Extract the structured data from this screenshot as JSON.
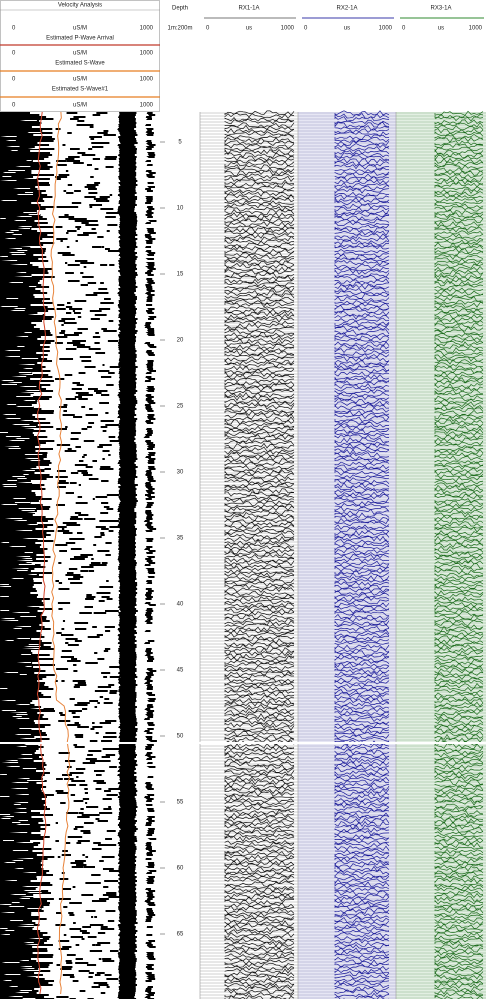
{
  "velocity_panel": {
    "title": "Velocity Analysis",
    "scales": [
      {
        "min": "0",
        "unit": "uS/M",
        "max": "1000",
        "label": "Estimated P-Wave Arrival"
      },
      {
        "min": "0",
        "unit": "uS/M",
        "max": "1000",
        "label": "Estimated S-Wave"
      },
      {
        "min": "0",
        "unit": "uS/M",
        "max": "1000",
        "label": "Estimated S-Wave#1"
      },
      {
        "min": "0",
        "unit": "uS/M",
        "max": "1000"
      }
    ]
  },
  "depth": {
    "title": "Depth",
    "scale": "1m:200m",
    "ticks": [
      5,
      10,
      15,
      20,
      25,
      30,
      35,
      40,
      45,
      50,
      55,
      60,
      65
    ]
  },
  "tracks": [
    {
      "name": "RX1-1A",
      "min": "0",
      "unit": "us",
      "max": "1000"
    },
    {
      "name": "RX2-1A",
      "min": "0",
      "unit": "us",
      "max": "1000"
    },
    {
      "name": "RX3-1A",
      "min": "0",
      "unit": "us",
      "max": "1000"
    }
  ]
}
